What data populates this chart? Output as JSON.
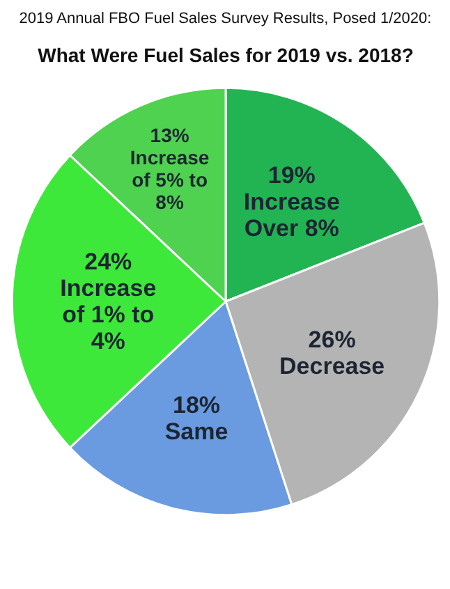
{
  "chart_data": {
    "type": "pie",
    "title": "2019 Annual FBO Fuel Sales Survey Results, Posed 1/2020:",
    "subtitle": "What Were Fuel Sales for 2019 vs. 2018?",
    "categories": [
      "Increase Over 8%",
      "Decrease",
      "Same",
      "Increase of 1% to 4%",
      "Increase of 5% to 8%"
    ],
    "values": [
      19,
      26,
      18,
      24,
      13
    ],
    "value_labels": [
      "19%",
      "26%",
      "18%",
      "24%",
      "13%"
    ],
    "colors": [
      "#22b452",
      "#b4b4b4",
      "#6a9be0",
      "#3ee83a",
      "#4fd24f"
    ]
  }
}
